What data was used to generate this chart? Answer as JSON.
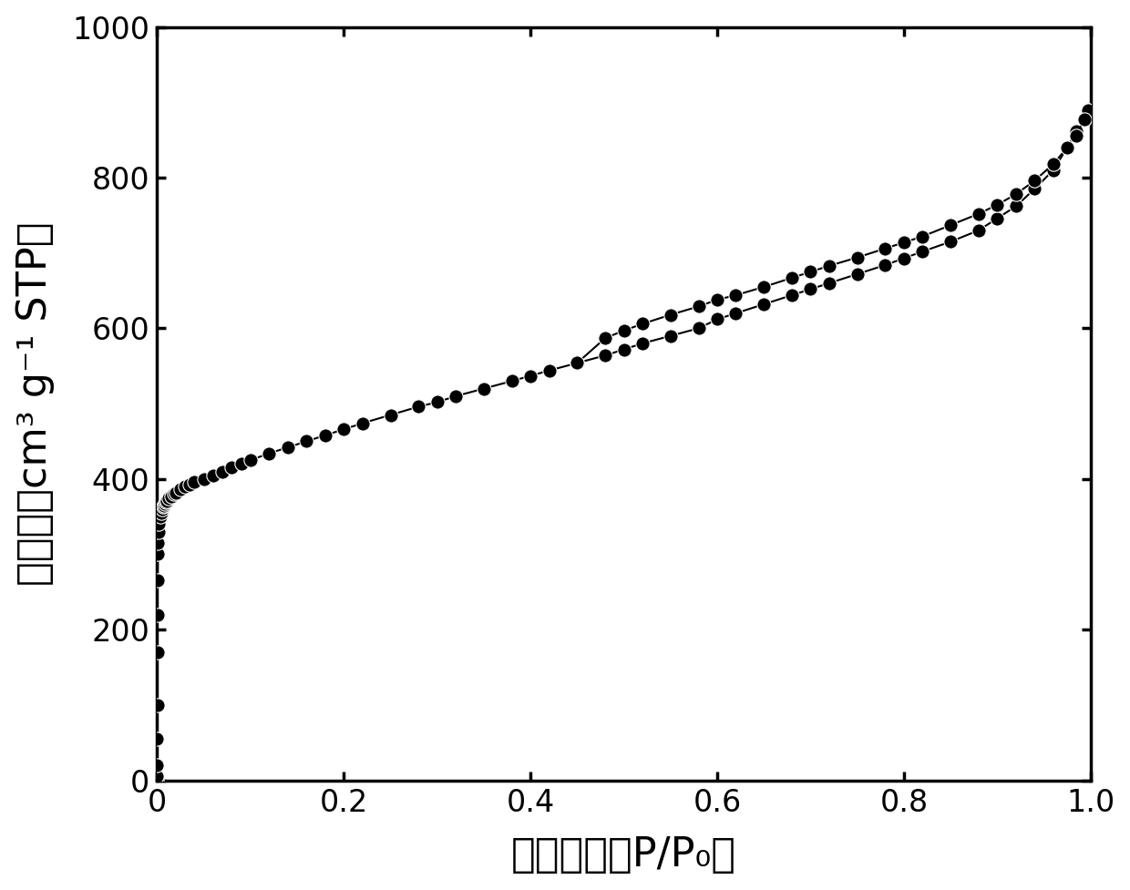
{
  "adsorption_x": [
    5e-06,
    1e-05,
    3e-05,
    5e-05,
    0.0001,
    0.0002,
    0.0003,
    0.0005,
    0.0008,
    0.001,
    0.0015,
    0.002,
    0.003,
    0.004,
    0.005,
    0.006,
    0.007,
    0.008,
    0.009,
    0.01,
    0.012,
    0.015,
    0.018,
    0.02,
    0.025,
    0.03,
    0.035,
    0.04,
    0.05,
    0.06,
    0.07,
    0.08,
    0.09,
    0.1,
    0.12,
    0.14,
    0.16,
    0.18,
    0.2,
    0.22,
    0.25,
    0.28,
    0.3,
    0.32,
    0.35,
    0.38,
    0.4,
    0.42,
    0.45,
    0.48,
    0.5,
    0.52,
    0.55,
    0.58,
    0.6,
    0.62,
    0.65,
    0.68,
    0.7,
    0.72,
    0.75,
    0.78,
    0.8,
    0.82,
    0.85,
    0.88,
    0.9,
    0.92,
    0.94,
    0.96,
    0.975,
    0.985,
    0.993,
    0.997
  ],
  "adsorption_y": [
    0,
    5,
    20,
    55,
    100,
    170,
    220,
    265,
    300,
    315,
    330,
    340,
    350,
    355,
    360,
    363,
    365,
    367,
    369,
    371,
    374,
    377,
    380,
    382,
    386,
    390,
    393,
    396,
    400,
    405,
    410,
    415,
    420,
    425,
    434,
    442,
    450,
    458,
    466,
    474,
    485,
    496,
    502,
    510,
    520,
    530,
    537,
    544,
    554,
    564,
    572,
    580,
    590,
    600,
    612,
    620,
    632,
    644,
    652,
    660,
    672,
    684,
    693,
    702,
    715,
    730,
    746,
    762,
    785,
    810,
    840,
    862,
    878,
    890
  ],
  "desorption_x": [
    0.997,
    0.993,
    0.985,
    0.975,
    0.96,
    0.94,
    0.92,
    0.9,
    0.88,
    0.85,
    0.82,
    0.8,
    0.78,
    0.75,
    0.72,
    0.7,
    0.68,
    0.65,
    0.62,
    0.6,
    0.58,
    0.55,
    0.52,
    0.5,
    0.48,
    0.45
  ],
  "desorption_y": [
    890,
    878,
    856,
    840,
    818,
    796,
    778,
    764,
    752,
    737,
    722,
    714,
    706,
    694,
    683,
    675,
    667,
    655,
    644,
    638,
    629,
    618,
    606,
    597,
    587,
    554
  ],
  "xlabel": "相对压力（P/P₀）",
  "ylabel": "吸附量（cm³ g⁻¹ STP）",
  "xlim": [
    0.0,
    1.0
  ],
  "ylim": [
    0,
    1000
  ],
  "xticks": [
    0.0,
    0.2,
    0.4,
    0.6,
    0.8,
    1.0
  ],
  "yticks": [
    0,
    200,
    400,
    600,
    800,
    1000
  ],
  "marker_size": 11,
  "line_color": "#000000",
  "marker_color": "#000000",
  "bg_color": "#ffffff",
  "xlabel_fontsize": 32,
  "ylabel_fontsize": 32,
  "tick_fontsize": 24,
  "line_width": 1.5
}
